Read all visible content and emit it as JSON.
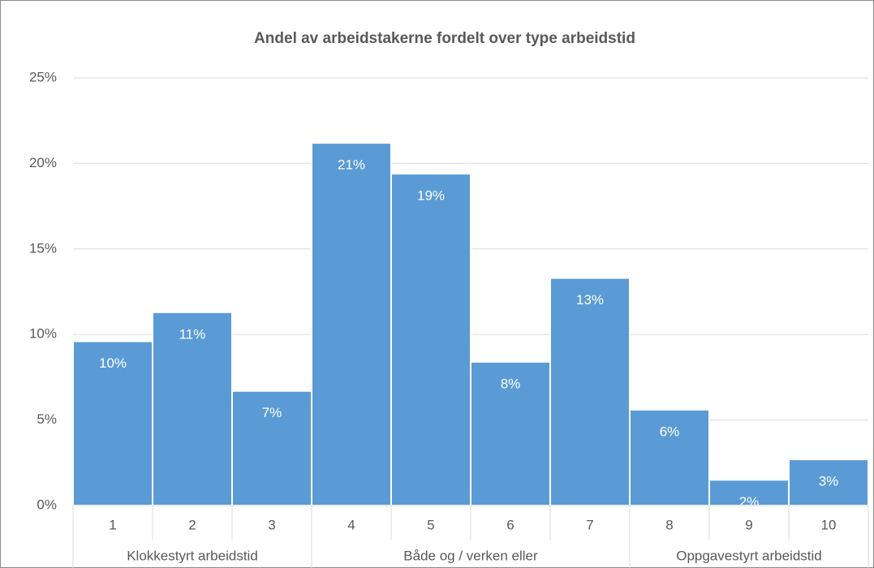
{
  "chart_data": {
    "type": "bar",
    "title": "Andel av arbeidstakerne fordelt over type arbeidstid",
    "groups": [
      {
        "name": "Klokkestyrt arbeidstid",
        "categories": [
          "1",
          "2",
          "3"
        ],
        "values": [
          9.6,
          11.3,
          6.7
        ],
        "value_labels": [
          "10%",
          "11%",
          "7%"
        ]
      },
      {
        "name": "Både og / verken eller",
        "categories": [
          "4",
          "5",
          "6",
          "7"
        ],
        "values": [
          21.2,
          19.4,
          8.4,
          13.3
        ],
        "value_labels": [
          "21%",
          "19%",
          "8%",
          "13%"
        ]
      },
      {
        "name": "Oppgavestyrt arbeidstid",
        "categories": [
          "8",
          "9",
          "10"
        ],
        "values": [
          5.6,
          1.5,
          2.7
        ],
        "value_labels": [
          "6%",
          "2%",
          "3%"
        ]
      }
    ],
    "color": "#5b9bd5",
    "ylim": [
      0,
      25
    ],
    "yticks": [
      {
        "value": 0,
        "label": "0%"
      },
      {
        "value": 5,
        "label": "5%"
      },
      {
        "value": 10,
        "label": "10%"
      },
      {
        "value": 15,
        "label": "15%"
      },
      {
        "value": 20,
        "label": "20%"
      },
      {
        "value": 25,
        "label": "25%"
      }
    ],
    "grid": true
  }
}
